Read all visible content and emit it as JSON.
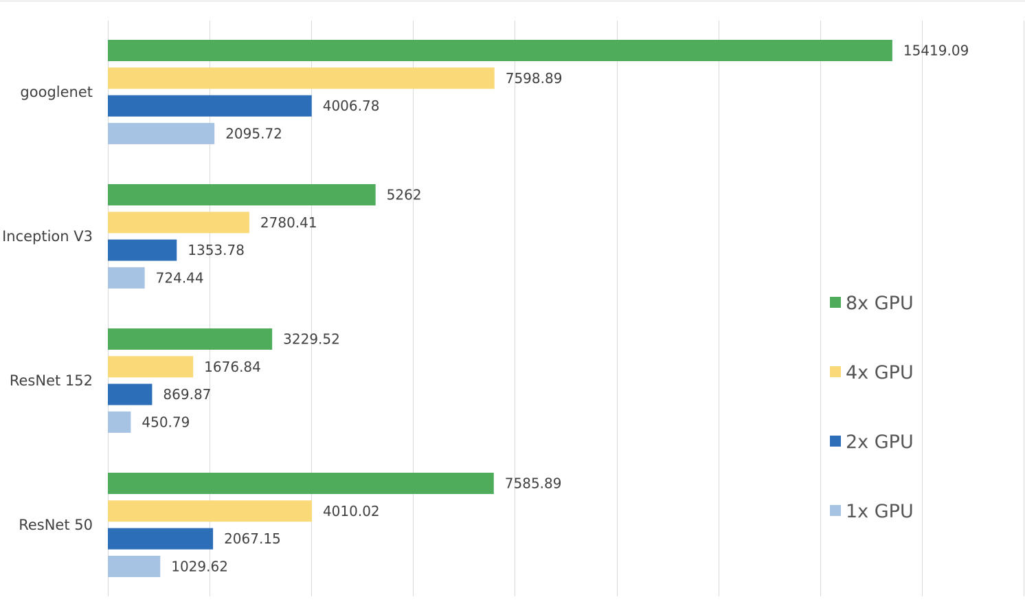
{
  "chart_data": {
    "type": "bar",
    "orientation": "horizontal",
    "title": "",
    "xlabel": "",
    "ylabel": "",
    "xlim": [
      0,
      18000
    ],
    "grid": true,
    "legend_position": "right",
    "categories": [
      "googlenet",
      "Inception V3",
      "ResNet 152",
      "ResNet 50"
    ],
    "series": [
      {
        "name": "8x GPU",
        "color": "#4eac5b",
        "values": [
          15419.09,
          5262,
          3229.52,
          7585.89
        ],
        "labels": [
          "15419.09",
          "5262",
          "3229.52",
          "7585.89"
        ]
      },
      {
        "name": "4x GPU",
        "color": "#f9d978",
        "values": [
          7598.89,
          2780.41,
          1676.84,
          4010.02
        ],
        "labels": [
          "7598.89",
          "2780.41",
          "1676.84",
          "4010.02"
        ]
      },
      {
        "name": "2x GPU",
        "color": "#2d6eb8",
        "values": [
          4006.78,
          1353.78,
          869.87,
          2067.15
        ],
        "labels": [
          "4006.78",
          "1353.78",
          "869.87",
          "2067.15"
        ]
      },
      {
        "name": "1x GPU",
        "color": "#a7c3e3",
        "values": [
          2095.72,
          724.44,
          450.79,
          1029.62
        ],
        "labels": [
          "2095.72",
          "724.44",
          "450.79",
          "1029.62"
        ]
      }
    ]
  }
}
